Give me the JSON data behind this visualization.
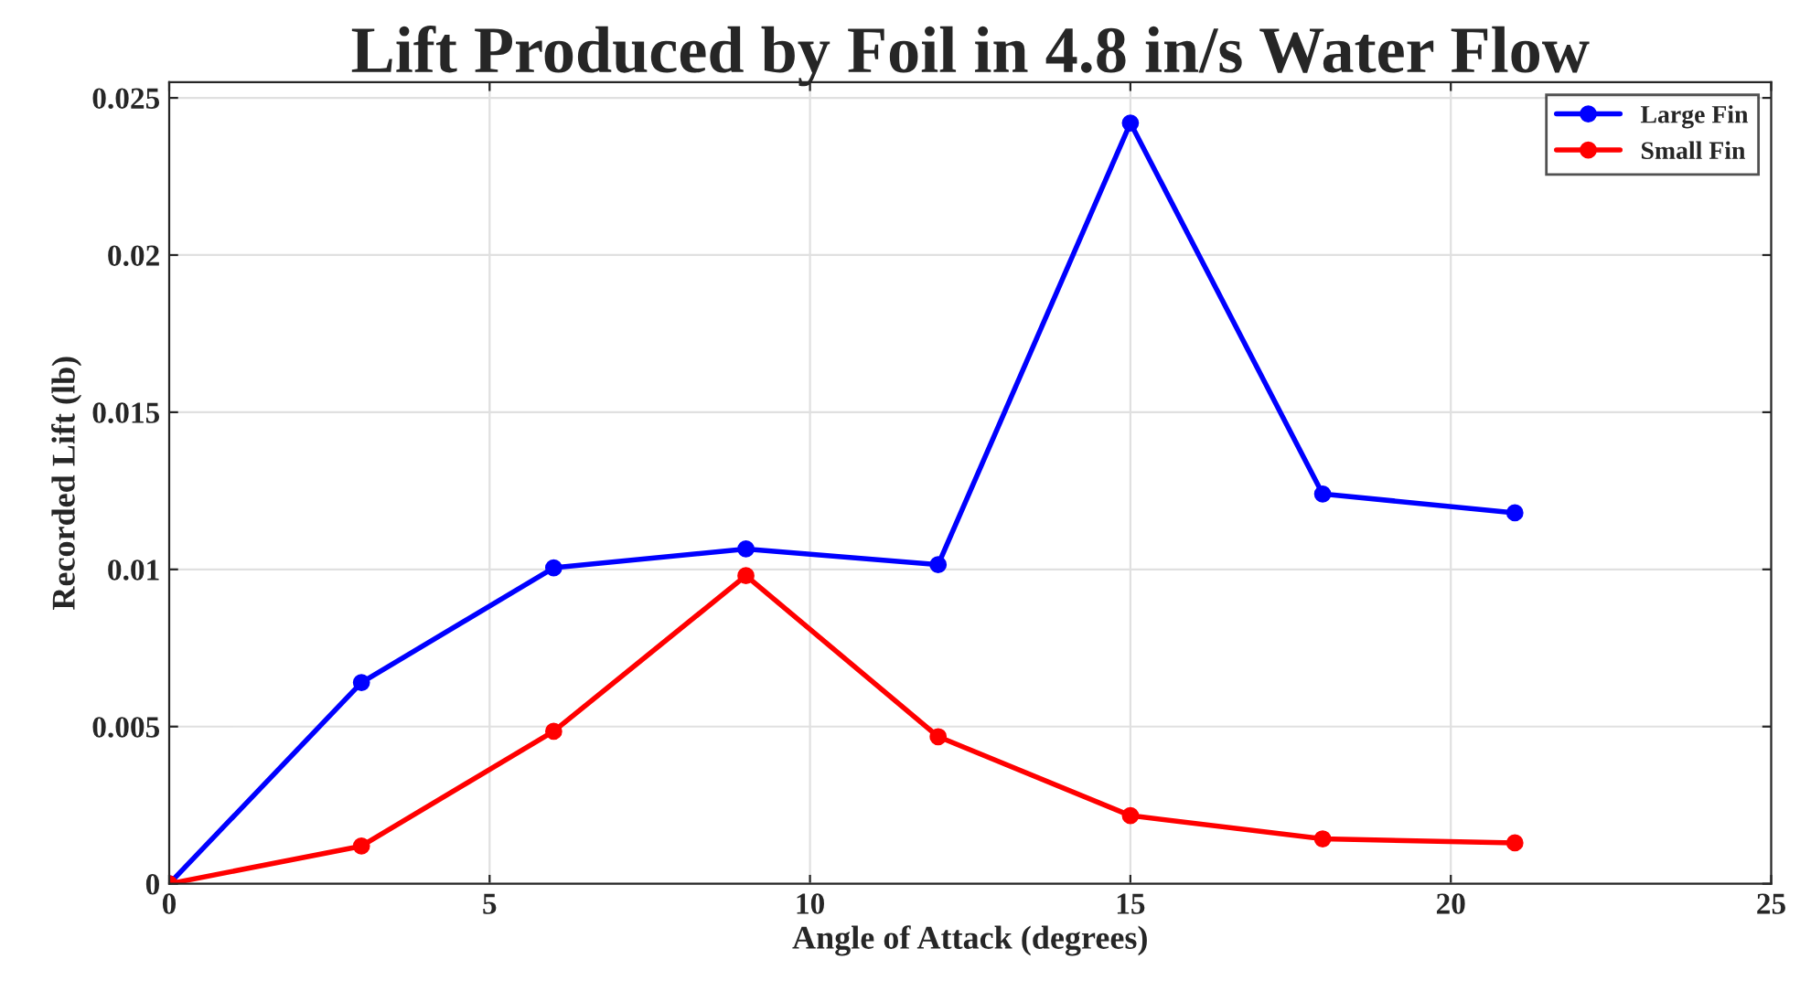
{
  "chart_data": {
    "type": "line",
    "title": "Lift Produced by Foil in 4.8 in/s Water Flow",
    "xlabel": "Angle of Attack (degrees)",
    "ylabel": "Recorded Lift (lb)",
    "x": [
      0,
      3,
      6,
      9,
      12,
      15,
      18,
      21
    ],
    "series": [
      {
        "name": "Large Fin",
        "color": "#0000ff",
        "values": [
          0,
          0.0064,
          0.01005,
          0.01065,
          0.01015,
          0.0242,
          0.0124,
          0.0118
        ]
      },
      {
        "name": "Small Fin",
        "color": "#ff0000",
        "values": [
          0,
          0.0012,
          0.00485,
          0.0098,
          0.00468,
          0.00217,
          0.00143,
          0.0013
        ]
      }
    ],
    "xlim": [
      0,
      25
    ],
    "xticks": [
      0,
      5,
      10,
      15,
      20,
      25
    ],
    "ylim": [
      0,
      0.0255
    ],
    "yticks": [
      0,
      0.005,
      0.01,
      0.015,
      0.02,
      0.025
    ],
    "grid": true,
    "legend": "top right",
    "marker": "circle",
    "line_style": "solid"
  }
}
